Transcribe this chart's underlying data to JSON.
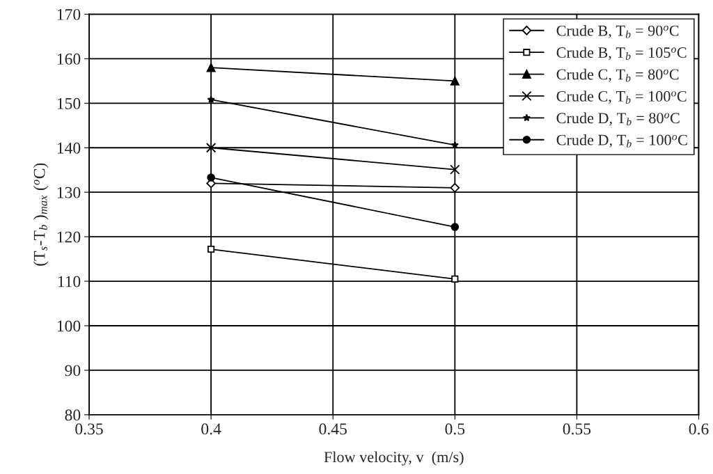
{
  "chart_data": {
    "type": "line",
    "xlabel": "Flow velocity, v  (m/s)",
    "ylabel": "(T$_{s}$-T$_{b}$ )$_{max}$ ($^{o}$C)",
    "x": [
      0.4,
      0.5
    ],
    "series": [
      {
        "name": "Crude B, T$_{b}$ = 90$^{o}$C",
        "color": "#000000",
        "marker": "diamond",
        "values": [
          132,
          131
        ]
      },
      {
        "name": "Crude B, T$_{b}$ = 105$^{o}$C",
        "color": "#000000",
        "marker": "square",
        "values": [
          117.2,
          110.5
        ]
      },
      {
        "name": "Crude C, T$_{b}$ = 80$^{o}$C",
        "color": "#000000",
        "marker": "triangle",
        "values": [
          158,
          155
        ]
      },
      {
        "name": "Crude C, T$_{b}$ = 100$^{o}$C",
        "color": "#000000",
        "marker": "cross",
        "values": [
          140,
          135.1
        ]
      },
      {
        "name": "Crude D, T$_{b}$ = 80$^{o}$C",
        "color": "#000000",
        "marker": "star",
        "values": [
          150.8,
          140.6
        ]
      },
      {
        "name": "Crude D, T$_{b}$ = 100$^{o}$C",
        "color": "#000000",
        "marker": "circle",
        "values": [
          133.3,
          122.2
        ]
      }
    ],
    "xlim": [
      0.35,
      0.6
    ],
    "xticks": [
      0.35,
      0.4,
      0.45,
      0.5,
      0.55,
      0.6
    ],
    "ylim": [
      80,
      170
    ],
    "yticks": [
      80,
      90,
      100,
      110,
      120,
      130,
      140,
      150,
      160,
      170
    ],
    "grid": true,
    "legend": "top right",
    "line_style": "solid"
  }
}
